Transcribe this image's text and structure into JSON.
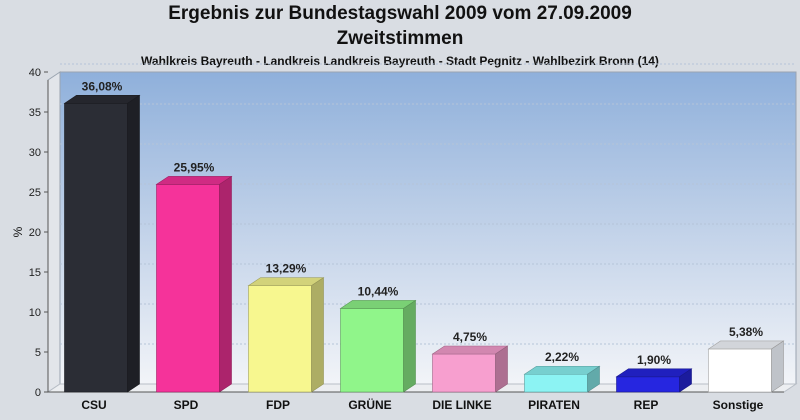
{
  "chart_data": {
    "type": "bar",
    "title": "Ergebnis zur Bundestagswahl 2009 vom 27.09.2009",
    "title_line2": "Zweitstimmen",
    "subtitle": "Wahlkreis Bayreuth - Landkreis Landkreis Bayreuth - Stadt Pegnitz - Wahlbezirk Bronn (14)",
    "ylabel": "%",
    "xlabel": "",
    "ylim": [
      0,
      40
    ],
    "yticks": [
      0,
      5,
      10,
      15,
      20,
      25,
      30,
      35,
      40
    ],
    "grid": true,
    "categories": [
      "CSU",
      "SPD",
      "FDP",
      "GRÜNE",
      "DIE LINKE",
      "PIRATEN",
      "REP",
      "Sonstige"
    ],
    "values": [
      36.08,
      25.95,
      13.29,
      10.44,
      4.75,
      2.22,
      1.9,
      5.38
    ],
    "value_labels": [
      "36,08%",
      "25,95%",
      "13,29%",
      "10,44%",
      "4,75%",
      "2,22%",
      "1,90%",
      "5,38%"
    ],
    "colors": [
      "#2b2d35",
      "#f5339a",
      "#f7f78f",
      "#90f58a",
      "#f79fcf",
      "#8cf3f3",
      "#2626e0",
      "#ffffff"
    ]
  }
}
